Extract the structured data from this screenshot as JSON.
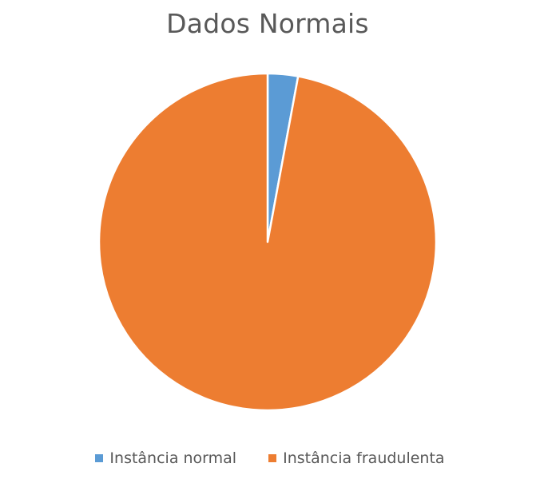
{
  "chart_data": {
    "type": "pie",
    "title": "Dados Normais",
    "slices": [
      {
        "label": "Instância normal",
        "value": 2.9,
        "color": "#5b9bd5"
      },
      {
        "label": "Instância fraudulenta",
        "value": 97.1,
        "color": "#ed7d31"
      }
    ],
    "legend_position": "bottom"
  }
}
